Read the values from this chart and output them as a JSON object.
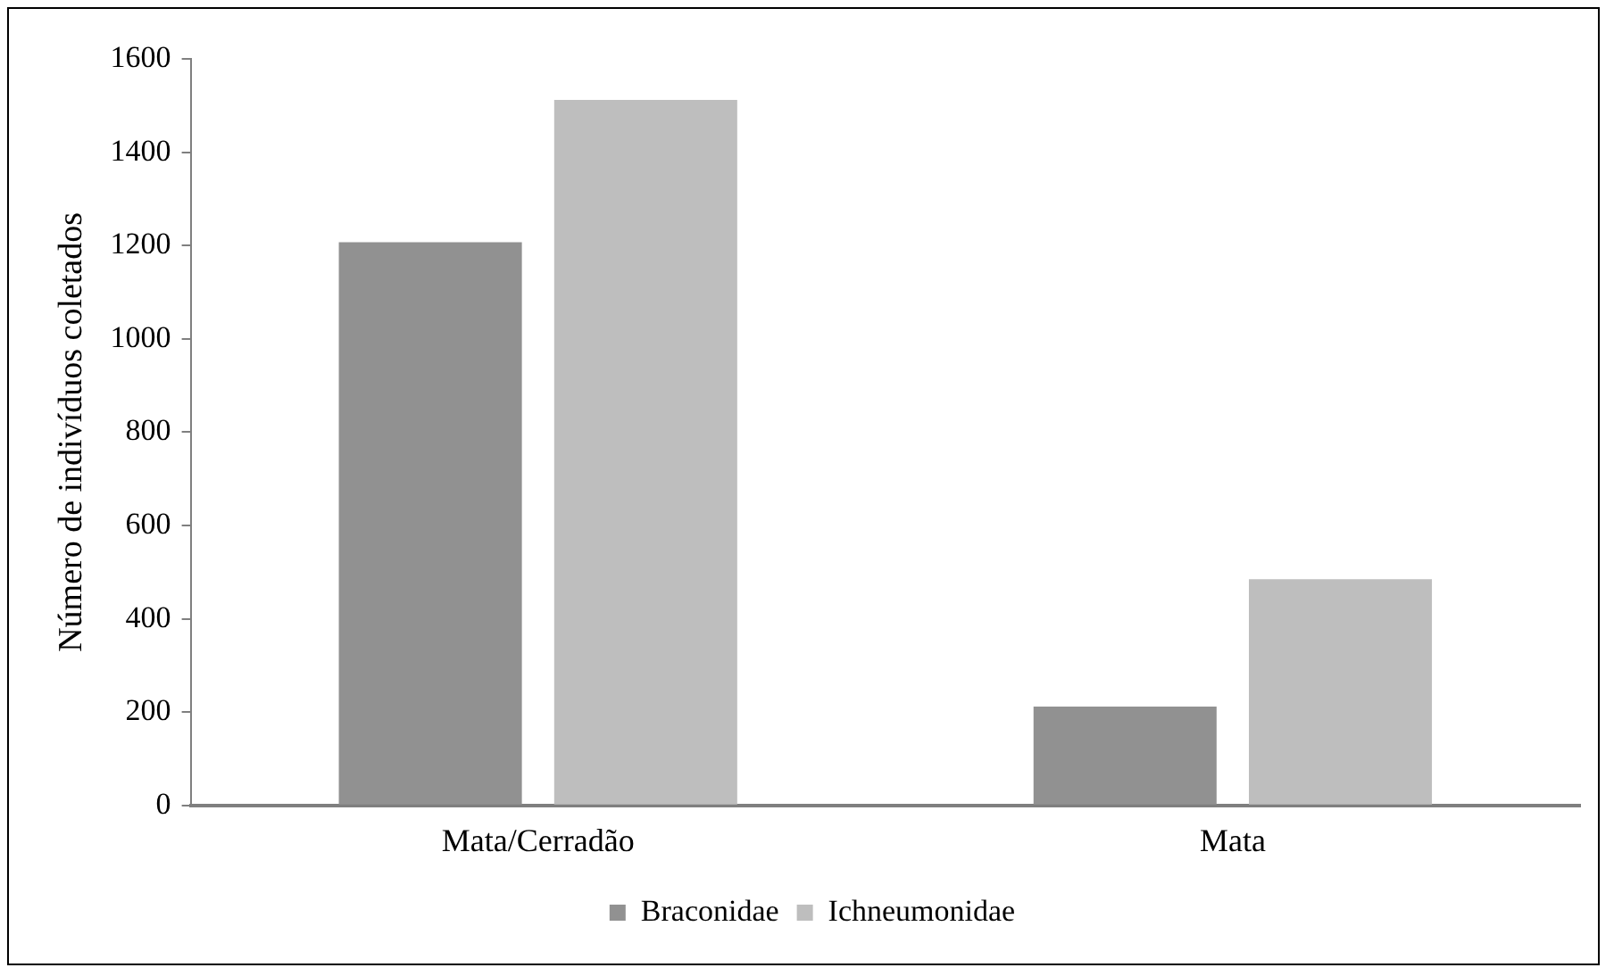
{
  "chart_data": {
    "type": "bar",
    "ylabel": "Número de indivíduos coletados",
    "categories": [
      "Mata/Cerradão",
      "Mata"
    ],
    "series": [
      {
        "name": "Braconidae",
        "color": "#919191",
        "values": [
          1207,
          212
        ]
      },
      {
        "name": "Ichneumonidae",
        "color": "#bebebe",
        "values": [
          1512,
          485
        ]
      }
    ],
    "ylim": [
      0,
      1600
    ],
    "yticks": [
      0,
      200,
      400,
      600,
      800,
      1000,
      1200,
      1400,
      1600
    ],
    "grid": false,
    "legend": "bottom"
  }
}
